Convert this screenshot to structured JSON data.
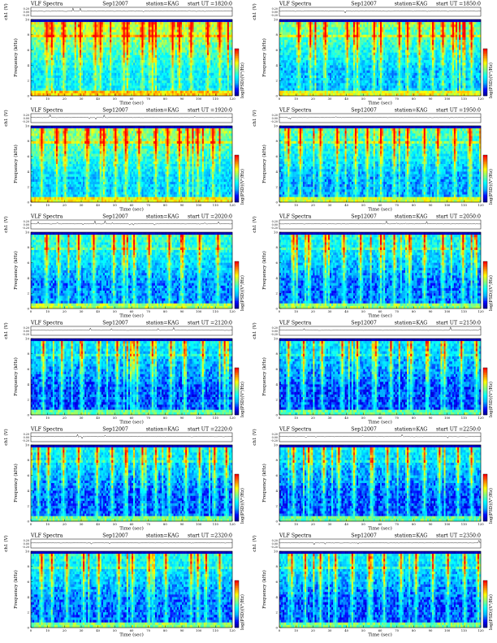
{
  "header_labels": {
    "title": "VLF Spectra",
    "station": "station=KAG",
    "start_prefix": "start UT =",
    "ch_axis": "ch1 (V)",
    "freq_axis": "Frequency (kHz)",
    "time_axis": "Time (sec)",
    "cbar_axis": "log(PSD)(V²/Hz)"
  },
  "chart_data": [
    {
      "type": "heatmap",
      "date": "Sep12007",
      "start_ut": "1820:0",
      "x_ticks": [
        "0",
        "10",
        "20",
        "30",
        "40",
        "50",
        "60",
        "70",
        "80",
        "90",
        "100",
        "110",
        "120"
      ],
      "y_ticks": [
        "0",
        "2",
        "4",
        "6",
        "8",
        "10"
      ],
      "ch_ticks": [
        "0.20",
        "0.00",
        "-0.20"
      ],
      "xlim": [
        0,
        120
      ],
      "ylim": [
        0,
        10
      ],
      "activity": 0.92,
      "streaks": [
        9,
        12,
        19,
        29,
        38,
        41,
        55,
        57,
        66,
        72,
        84,
        88,
        95,
        105,
        112
      ],
      "colorscale": [
        "#000080",
        "#0000ff",
        "#00b0ff",
        "#00ffff",
        "#80ff80",
        "#ffff00",
        "#ff8000",
        "#ff0000"
      ]
    },
    {
      "type": "heatmap",
      "date": "Sep12007",
      "start_ut": "1850:0",
      "x_ticks": [
        "0",
        "10",
        "20",
        "30",
        "40",
        "50",
        "60",
        "70",
        "80",
        "90",
        "100",
        "110",
        "120"
      ],
      "y_ticks": [
        "0",
        "2",
        "4",
        "6",
        "8",
        "10"
      ],
      "ch_ticks": [
        "0.20",
        "0.00",
        "-0.20"
      ],
      "xlim": [
        0,
        120
      ],
      "ylim": [
        0,
        10
      ],
      "activity": 0.7,
      "streaks": [
        11,
        18,
        27,
        40,
        46,
        56,
        60,
        71,
        76,
        83,
        91,
        97,
        103,
        114
      ],
      "colorscale": [
        "#000080",
        "#0000ff",
        "#00b0ff",
        "#00ffff",
        "#80ff80",
        "#ffff00",
        "#ff8000",
        "#ff0000"
      ]
    },
    {
      "type": "heatmap",
      "date": "Sep12007",
      "start_ut": "1920:0",
      "x_ticks": [
        "0",
        "10",
        "20",
        "30",
        "40",
        "50",
        "60",
        "70",
        "80",
        "90",
        "100",
        "110",
        "120"
      ],
      "y_ticks": [
        "0",
        "2",
        "4",
        "6",
        "8",
        "10"
      ],
      "ch_ticks": [
        "0.20",
        "0.00",
        "-0.20"
      ],
      "xlim": [
        0,
        120
      ],
      "ylim": [
        0,
        10
      ],
      "activity": 0.78,
      "streaks": [
        6,
        15,
        20,
        33,
        43,
        50,
        56,
        64,
        74,
        81,
        88,
        93,
        99,
        108
      ],
      "colorscale": [
        "#000080",
        "#0000ff",
        "#00b0ff",
        "#00ffff",
        "#80ff80",
        "#ffff00",
        "#ff8000",
        "#ff0000"
      ]
    },
    {
      "type": "heatmap",
      "date": "Sep12007",
      "start_ut": "1950:0",
      "x_ticks": [
        "0",
        "10",
        "20",
        "30",
        "40",
        "50",
        "60",
        "70",
        "80",
        "90",
        "100",
        "110",
        "120"
      ],
      "y_ticks": [
        "0",
        "2",
        "4",
        "6",
        "8",
        "10"
      ],
      "ch_ticks": [
        "0.20",
        "0.00",
        "-0.20"
      ],
      "xlim": [
        0,
        120
      ],
      "ylim": [
        0,
        10
      ],
      "activity": 0.6,
      "streaks": [
        5,
        12,
        24,
        34,
        45,
        52,
        60,
        68,
        76,
        86,
        94,
        104,
        113
      ],
      "colorscale": [
        "#000080",
        "#0000ff",
        "#00b0ff",
        "#00ffff",
        "#80ff80",
        "#ffff00",
        "#ff8000",
        "#ff0000"
      ]
    },
    {
      "type": "heatmap",
      "date": "Sep12007",
      "start_ut": "2020:0",
      "x_ticks": [
        "0",
        "10",
        "20",
        "30",
        "40",
        "50",
        "60",
        "70",
        "80",
        "90",
        "100",
        "110",
        "120"
      ],
      "y_ticks": [
        "0",
        "2",
        "4",
        "6",
        "8",
        "10"
      ],
      "ch_ticks": [
        "0.20",
        "0.00",
        "-0.20"
      ],
      "xlim": [
        0,
        120
      ],
      "ylim": [
        0,
        10
      ],
      "activity": 0.5,
      "streaks": [
        9,
        16,
        28,
        37,
        49,
        55,
        61,
        70,
        82,
        90,
        100,
        111
      ],
      "colorscale": [
        "#000080",
        "#0000ff",
        "#00b0ff",
        "#00ffff",
        "#80ff80",
        "#ffff00",
        "#ff8000",
        "#ff0000"
      ]
    },
    {
      "type": "heatmap",
      "date": "Sep12007",
      "start_ut": "2050:0",
      "x_ticks": [
        "0",
        "10",
        "20",
        "30",
        "40",
        "50",
        "60",
        "70",
        "80",
        "90",
        "100",
        "110",
        "120"
      ],
      "y_ticks": [
        "0",
        "2",
        "4",
        "6",
        "8",
        "10"
      ],
      "ch_ticks": [
        "0.20",
        "0.00",
        "-0.20"
      ],
      "xlim": [
        0,
        120
      ],
      "ylim": [
        0,
        10
      ],
      "activity": 0.42,
      "streaks": [
        8,
        17,
        27,
        38,
        48,
        60,
        68,
        77,
        86,
        97,
        109
      ],
      "colorscale": [
        "#000080",
        "#0000ff",
        "#00b0ff",
        "#00ffff",
        "#80ff80",
        "#ffff00",
        "#ff8000",
        "#ff0000"
      ]
    },
    {
      "type": "heatmap",
      "date": "Sep12007",
      "start_ut": "2120:0",
      "x_ticks": [
        "0",
        "10",
        "20",
        "30",
        "40",
        "50",
        "60",
        "70",
        "80",
        "90",
        "100",
        "110",
        "120"
      ],
      "y_ticks": [
        "0",
        "2",
        "4",
        "6",
        "8",
        "10"
      ],
      "ch_ticks": [
        "0.20",
        "0.00",
        "-0.20"
      ],
      "xlim": [
        0,
        120
      ],
      "ylim": [
        0,
        10
      ],
      "activity": 0.3,
      "streaks": [
        7,
        18,
        30,
        40,
        51,
        63,
        72,
        83,
        91,
        102,
        115
      ],
      "colorscale": [
        "#000080",
        "#0000ff",
        "#00b0ff",
        "#00ffff",
        "#80ff80",
        "#ffff00",
        "#ff8000",
        "#ff0000"
      ]
    },
    {
      "type": "heatmap",
      "date": "Sep12007",
      "start_ut": "2150:0",
      "x_ticks": [
        "0",
        "10",
        "20",
        "30",
        "40",
        "50",
        "60",
        "70",
        "80",
        "90",
        "100",
        "110",
        "120"
      ],
      "y_ticks": [
        "0",
        "2",
        "4",
        "6",
        "8",
        "10"
      ],
      "ch_ticks": [
        "0.20",
        "0.00",
        "-0.20"
      ],
      "xlim": [
        0,
        120
      ],
      "ylim": [
        0,
        10
      ],
      "activity": 0.28,
      "streaks": [
        5,
        14,
        25,
        37,
        46,
        57,
        66,
        78,
        88,
        98,
        108,
        117
      ],
      "colorscale": [
        "#000080",
        "#0000ff",
        "#00b0ff",
        "#00ffff",
        "#80ff80",
        "#ffff00",
        "#ff8000",
        "#ff0000"
      ]
    },
    {
      "type": "heatmap",
      "date": "Sep12007",
      "start_ut": "2220:0",
      "x_ticks": [
        "0",
        "10",
        "20",
        "30",
        "40",
        "50",
        "60",
        "70",
        "80",
        "90",
        "100",
        "110",
        "120"
      ],
      "y_ticks": [
        "0",
        "2",
        "4",
        "6",
        "8",
        "10"
      ],
      "ch_ticks": [
        "0.20",
        "0.00",
        "-0.20"
      ],
      "xlim": [
        0,
        120
      ],
      "ylim": [
        0,
        10
      ],
      "activity": 0.34,
      "streaks": [
        4,
        10,
        19,
        28,
        39,
        48,
        56,
        66,
        74,
        82,
        92,
        100,
        109,
        116
      ],
      "colorscale": [
        "#000080",
        "#0000ff",
        "#00b0ff",
        "#00ffff",
        "#80ff80",
        "#ffff00",
        "#ff8000",
        "#ff0000"
      ]
    },
    {
      "type": "heatmap",
      "date": "Sep12007",
      "start_ut": "2250:0",
      "x_ticks": [
        "0",
        "10",
        "20",
        "30",
        "40",
        "50",
        "60",
        "70",
        "80",
        "90",
        "100",
        "110",
        "120"
      ],
      "y_ticks": [
        "0",
        "2",
        "4",
        "6",
        "8",
        "10"
      ],
      "ch_ticks": [
        "0.20",
        "0.00",
        "-0.20"
      ],
      "xlim": [
        0,
        120
      ],
      "ylim": [
        0,
        10
      ],
      "activity": 0.3,
      "streaks": [
        8,
        17,
        26,
        35,
        44,
        55,
        64,
        76,
        86,
        95,
        106,
        114
      ],
      "colorscale": [
        "#000080",
        "#0000ff",
        "#00b0ff",
        "#00ffff",
        "#80ff80",
        "#ffff00",
        "#ff8000",
        "#ff0000"
      ]
    },
    {
      "type": "heatmap",
      "date": "Sep12007",
      "start_ut": "2320:0",
      "x_ticks": [
        "0",
        "10",
        "20",
        "30",
        "40",
        "50",
        "60",
        "70",
        "80",
        "90",
        "100",
        "110",
        "120"
      ],
      "y_ticks": [
        "0",
        "2",
        "4",
        "6",
        "8",
        "10"
      ],
      "ch_ticks": [
        "0.20",
        "0.00",
        "-0.20"
      ],
      "xlim": [
        0,
        120
      ],
      "ylim": [
        0,
        10
      ],
      "activity": 0.4,
      "streaks": [
        6,
        12,
        21,
        31,
        40,
        52,
        60,
        70,
        80,
        95,
        99,
        104,
        112
      ],
      "colorscale": [
        "#000080",
        "#0000ff",
        "#00b0ff",
        "#00ffff",
        "#80ff80",
        "#ffff00",
        "#ff8000",
        "#ff0000"
      ]
    },
    {
      "type": "heatmap",
      "date": "Sep12007",
      "start_ut": "2350:0",
      "x_ticks": [
        "0",
        "10",
        "20",
        "30",
        "40",
        "50",
        "60",
        "70",
        "80",
        "90",
        "100",
        "110",
        "120"
      ],
      "y_ticks": [
        "0",
        "2",
        "4",
        "6",
        "8",
        "10"
      ],
      "ch_ticks": [
        "0.20",
        "0.00",
        "-0.20"
      ],
      "xlim": [
        0,
        120
      ],
      "ylim": [
        0,
        10
      ],
      "activity": 0.33,
      "streaks": [
        7,
        15,
        24,
        33,
        43,
        53,
        62,
        72,
        81,
        91,
        100,
        110,
        118
      ],
      "colorscale": [
        "#000080",
        "#0000ff",
        "#00b0ff",
        "#00ffff",
        "#80ff80",
        "#ffff00",
        "#ff8000",
        "#ff0000"
      ]
    }
  ]
}
